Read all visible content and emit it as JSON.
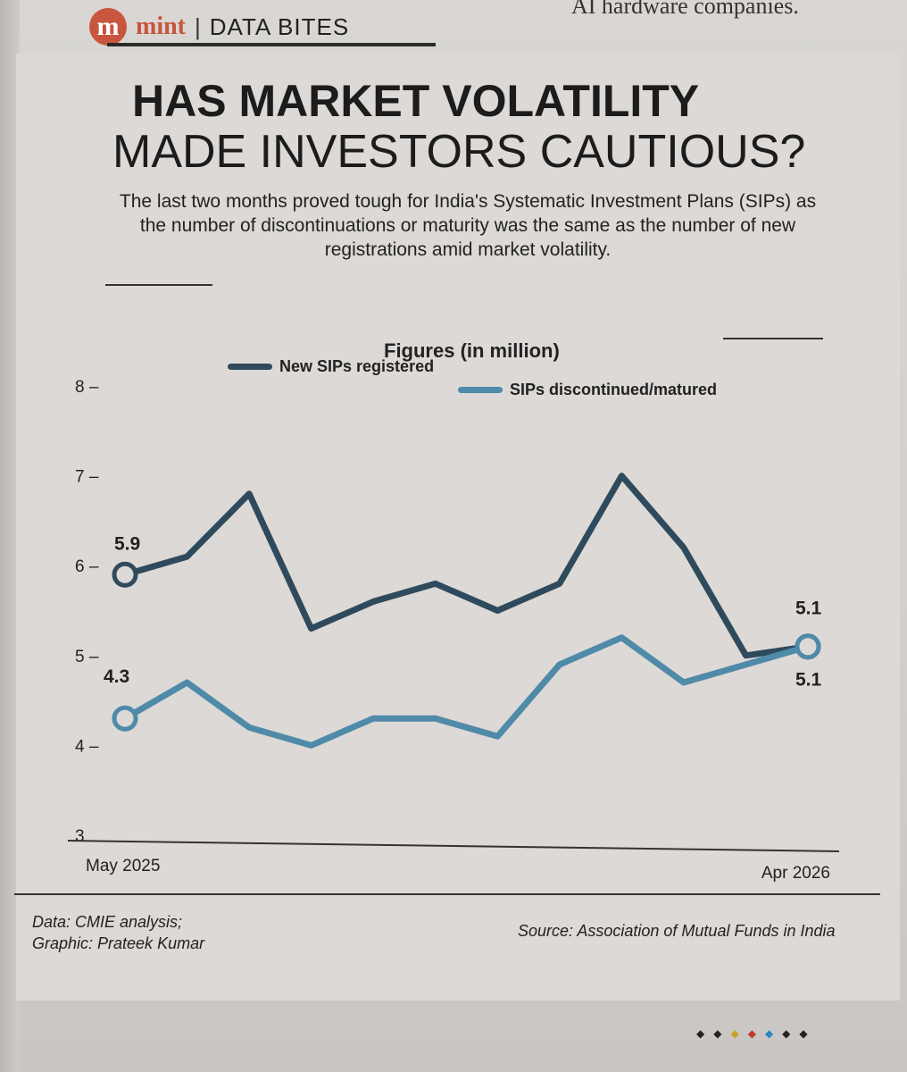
{
  "page": {
    "previous_headline": "AI hardware companies.",
    "brand_logo_letter": "m",
    "brand": "mint",
    "separator": "|",
    "section": "DATA BITES",
    "title_line1": "HAS MARKET VOLATILITY",
    "title_line2": "MADE INVESTORS CAUTIOUS?",
    "subtitle": "The last two months proved tough for India's Systematic Investment Plans (SIPs) as the number of discontinuations or maturity was the same as the number of new registrations amid market volatility.",
    "figures_label": "Figures (in million)",
    "credit_line1": "Data: CMIE analysis;",
    "credit_line2": "Graphic: Prateek Kumar",
    "source": "Source: Association of Mutual Funds in India",
    "page_dots": [
      "◆",
      "◆",
      "◆",
      "◆",
      "◆",
      "◆",
      "◆"
    ],
    "page_dot_colors": [
      "#222222",
      "#222222",
      "#c9a227",
      "#c0392b",
      "#2e86c1",
      "#222222",
      "#222222"
    ]
  },
  "chart_data": {
    "type": "line",
    "title": "Figures (in million)",
    "x": [
      "May 2025",
      "Jun 2025",
      "Jul 2025",
      "Aug 2025",
      "Sep 2025",
      "Oct 2025",
      "Nov 2025",
      "Dec 2025",
      "Jan 2026",
      "Feb 2026",
      "Mar 2026",
      "Apr 2026"
    ],
    "x_tick_labels": [
      "May 2025",
      "Apr 2026"
    ],
    "ylim": [
      3,
      8
    ],
    "y_ticks": [
      3,
      4,
      5,
      6,
      7,
      8
    ],
    "legend_position": "top",
    "series": [
      {
        "name": "New SIPs registered",
        "color": "#2f4a5c",
        "values": [
          5.9,
          6.1,
          6.8,
          5.3,
          5.6,
          5.8,
          5.5,
          5.8,
          7.0,
          6.2,
          5.0,
          5.1
        ],
        "labels": {
          "start": "5.9",
          "end": "5.1"
        }
      },
      {
        "name": "SIPs discontinued/matured",
        "color": "#4f8aa8",
        "values": [
          4.3,
          4.7,
          4.2,
          4.0,
          4.3,
          4.3,
          4.1,
          4.9,
          5.2,
          4.7,
          4.9,
          5.1
        ],
        "labels": {
          "start": "4.3",
          "end": "5.1"
        }
      }
    ]
  }
}
